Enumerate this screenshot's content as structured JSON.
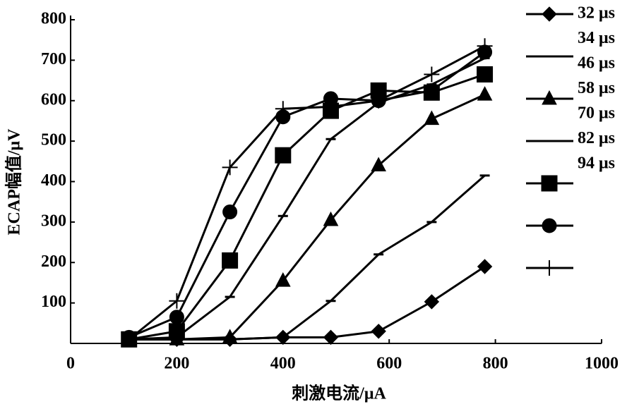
{
  "chart_data": {
    "type": "line",
    "x_label": "刺激电流/μA",
    "y_label": "ECAP幅值/μV",
    "x": [
      110,
      200,
      300,
      400,
      490,
      580,
      680,
      780
    ],
    "xlim": [
      0,
      1000
    ],
    "xticks": [
      0,
      200,
      400,
      600,
      800,
      1000
    ],
    "ylim": [
      0,
      800
    ],
    "yticks": [
      100,
      200,
      300,
      400,
      500,
      600,
      700,
      800
    ],
    "series": [
      {
        "name": "32 μs",
        "color": "#000000",
        "marker": "diamond",
        "values": [
          10,
          10,
          10,
          15,
          15,
          30,
          103,
          190
        ]
      },
      {
        "name": "34 μs",
        "color": "#000000",
        "marker": "dash",
        "values": [
          10,
          10,
          10,
          15,
          105,
          220,
          300,
          415
        ]
      },
      {
        "name": "46 μs",
        "color": "#000000",
        "marker": "triangle",
        "values": [
          10,
          10,
          15,
          155,
          305,
          440,
          555,
          615
        ]
      },
      {
        "name": "58 μs",
        "color": "#000000",
        "marker": "dash",
        "values": [
          10,
          15,
          115,
          315,
          505,
          595,
          640,
          705
        ]
      },
      {
        "name": "70 μs",
        "color": "#000000",
        "marker": "square",
        "values": [
          10,
          30,
          205,
          465,
          575,
          625,
          620,
          665
        ]
      },
      {
        "name": "82 μs",
        "color": "#000000",
        "marker": "circle",
        "values": [
          15,
          65,
          325,
          560,
          605,
          600,
          625,
          720
        ]
      },
      {
        "name": "94 μs",
        "color": "#000000",
        "marker": "plus",
        "values": [
          10,
          105,
          435,
          580,
          585,
          600,
          665,
          735
        ]
      }
    ]
  }
}
